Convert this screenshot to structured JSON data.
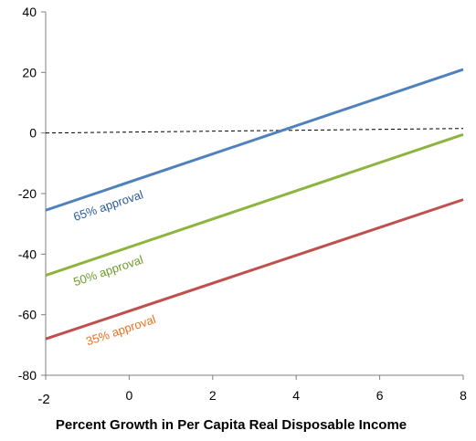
{
  "chart_data": {
    "type": "line",
    "title": "",
    "xlabel": "Percent Growth in Per Capita Real Disposable Income",
    "ylabel": "",
    "xlim": [
      -2,
      8
    ],
    "ylim": [
      -80,
      40
    ],
    "x_ticks": [
      "-2",
      "0",
      "2",
      "4",
      "6",
      "8"
    ],
    "y_ticks": [
      "40",
      "20",
      "0",
      "-20",
      "-40",
      "-60",
      "-80"
    ],
    "series": [
      {
        "name": "65% approval",
        "x": [
          -2,
          8
        ],
        "y": [
          -25.5,
          21
        ],
        "color": "#4f81bd"
      },
      {
        "name": "50% approval",
        "x": [
          -2,
          8
        ],
        "y": [
          -47,
          -0.5
        ],
        "color": "#8db43f"
      },
      {
        "name": "35% approval",
        "x": [
          -2,
          8
        ],
        "y": [
          -68,
          -22
        ],
        "color": "#c0504d"
      }
    ],
    "series_label_colors": [
      "#2a5a9a",
      "#6e9a2a",
      "#e8701e"
    ],
    "reference_line": {
      "style": "dashed",
      "y": [
        0,
        1.5
      ]
    },
    "grid": false,
    "legend": "none"
  }
}
